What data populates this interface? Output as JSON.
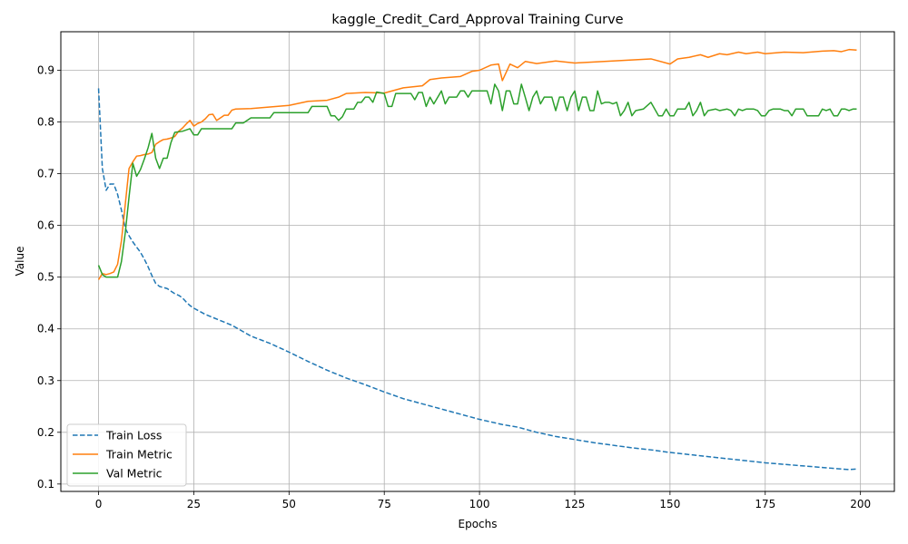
{
  "chart_data": {
    "type": "line",
    "title": "kaggle_Credit_Card_Approval Training Curve",
    "xlabel": "Epochs",
    "ylabel": "Value",
    "xlim": [
      -9.9,
      208.9
    ],
    "ylim": [
      0.0857,
      0.9745
    ],
    "xticks": [
      0,
      25,
      50,
      75,
      100,
      125,
      150,
      175,
      200
    ],
    "yticks": [
      0.1,
      0.2,
      0.3,
      0.4,
      0.5,
      0.6,
      0.7,
      0.8,
      0.9
    ],
    "grid": true,
    "legend_position": "lower-left",
    "series": [
      {
        "name": "Train Loss",
        "color": "#1f77b4",
        "style": "dashed",
        "points": [
          [
            0,
            0.865
          ],
          [
            1,
            0.71
          ],
          [
            2,
            0.668
          ],
          [
            3,
            0.68
          ],
          [
            4,
            0.68
          ],
          [
            5,
            0.66
          ],
          [
            6,
            0.63
          ],
          [
            7,
            0.595
          ],
          [
            8,
            0.58
          ],
          [
            9,
            0.568
          ],
          [
            10,
            0.558
          ],
          [
            11,
            0.548
          ],
          [
            12,
            0.535
          ],
          [
            13,
            0.52
          ],
          [
            14,
            0.503
          ],
          [
            15,
            0.488
          ],
          [
            16,
            0.482
          ],
          [
            17,
            0.48
          ],
          [
            18,
            0.478
          ],
          [
            19,
            0.473
          ],
          [
            20,
            0.468
          ],
          [
            21,
            0.465
          ],
          [
            22,
            0.46
          ],
          [
            23,
            0.452
          ],
          [
            24,
            0.445
          ],
          [
            25,
            0.44
          ],
          [
            26,
            0.436
          ],
          [
            27,
            0.432
          ],
          [
            28,
            0.428
          ],
          [
            29,
            0.425
          ],
          [
            30,
            0.422
          ],
          [
            35,
            0.407
          ],
          [
            40,
            0.386
          ],
          [
            45,
            0.372
          ],
          [
            50,
            0.355
          ],
          [
            55,
            0.337
          ],
          [
            60,
            0.32
          ],
          [
            65,
            0.305
          ],
          [
            70,
            0.292
          ],
          [
            75,
            0.278
          ],
          [
            80,
            0.265
          ],
          [
            85,
            0.255
          ],
          [
            90,
            0.245
          ],
          [
            95,
            0.235
          ],
          [
            100,
            0.225
          ],
          [
            103,
            0.22
          ],
          [
            106,
            0.215
          ],
          [
            110,
            0.21
          ],
          [
            115,
            0.2
          ],
          [
            120,
            0.192
          ],
          [
            125,
            0.186
          ],
          [
            130,
            0.18
          ],
          [
            135,
            0.175
          ],
          [
            140,
            0.17
          ],
          [
            145,
            0.166
          ],
          [
            150,
            0.161
          ],
          [
            155,
            0.157
          ],
          [
            160,
            0.153
          ],
          [
            165,
            0.149
          ],
          [
            170,
            0.145
          ],
          [
            175,
            0.141
          ],
          [
            180,
            0.138
          ],
          [
            185,
            0.135
          ],
          [
            190,
            0.132
          ],
          [
            195,
            0.129
          ],
          [
            197,
            0.128
          ],
          [
            199,
            0.129
          ]
        ]
      },
      {
        "name": "Train Metric",
        "color": "#ff7f0e",
        "style": "solid",
        "points": [
          [
            0,
            0.495
          ],
          [
            1,
            0.507
          ],
          [
            2,
            0.505
          ],
          [
            3,
            0.507
          ],
          [
            4,
            0.51
          ],
          [
            5,
            0.525
          ],
          [
            6,
            0.57
          ],
          [
            7,
            0.64
          ],
          [
            8,
            0.71
          ],
          [
            9,
            0.723
          ],
          [
            10,
            0.734
          ],
          [
            11,
            0.735
          ],
          [
            12,
            0.737
          ],
          [
            13,
            0.738
          ],
          [
            14,
            0.741
          ],
          [
            15,
            0.757
          ],
          [
            16,
            0.762
          ],
          [
            17,
            0.766
          ],
          [
            18,
            0.767
          ],
          [
            19,
            0.769
          ],
          [
            20,
            0.772
          ],
          [
            21,
            0.782
          ],
          [
            22,
            0.788
          ],
          [
            23,
            0.796
          ],
          [
            24,
            0.803
          ],
          [
            25,
            0.792
          ],
          [
            26,
            0.797
          ],
          [
            27,
            0.8
          ],
          [
            28,
            0.806
          ],
          [
            29,
            0.814
          ],
          [
            30,
            0.815
          ],
          [
            31,
            0.803
          ],
          [
            32,
            0.808
          ],
          [
            33,
            0.813
          ],
          [
            34,
            0.813
          ],
          [
            35,
            0.823
          ],
          [
            36,
            0.825
          ],
          [
            40,
            0.826
          ],
          [
            45,
            0.829
          ],
          [
            50,
            0.832
          ],
          [
            55,
            0.84
          ],
          [
            60,
            0.842
          ],
          [
            63,
            0.848
          ],
          [
            65,
            0.855
          ],
          [
            70,
            0.857
          ],
          [
            75,
            0.856
          ],
          [
            80,
            0.866
          ],
          [
            85,
            0.87
          ],
          [
            87,
            0.882
          ],
          [
            90,
            0.885
          ],
          [
            95,
            0.888
          ],
          [
            98,
            0.898
          ],
          [
            100,
            0.9
          ],
          [
            103,
            0.91
          ],
          [
            105,
            0.912
          ],
          [
            106,
            0.88
          ],
          [
            108,
            0.912
          ],
          [
            110,
            0.905
          ],
          [
            112,
            0.917
          ],
          [
            115,
            0.913
          ],
          [
            118,
            0.916
          ],
          [
            120,
            0.918
          ],
          [
            125,
            0.914
          ],
          [
            130,
            0.916
          ],
          [
            135,
            0.918
          ],
          [
            140,
            0.92
          ],
          [
            145,
            0.922
          ],
          [
            150,
            0.912
          ],
          [
            152,
            0.922
          ],
          [
            155,
            0.925
          ],
          [
            158,
            0.93
          ],
          [
            160,
            0.925
          ],
          [
            163,
            0.932
          ],
          [
            165,
            0.93
          ],
          [
            168,
            0.935
          ],
          [
            170,
            0.932
          ],
          [
            173,
            0.935
          ],
          [
            175,
            0.932
          ],
          [
            180,
            0.935
          ],
          [
            185,
            0.934
          ],
          [
            190,
            0.937
          ],
          [
            193,
            0.938
          ],
          [
            195,
            0.936
          ],
          [
            197,
            0.94
          ],
          [
            199,
            0.939
          ]
        ]
      },
      {
        "name": "Val Metric",
        "color": "#2ca02c",
        "style": "solid",
        "points": [
          [
            0,
            0.523
          ],
          [
            1,
            0.505
          ],
          [
            2,
            0.5
          ],
          [
            3,
            0.5
          ],
          [
            4,
            0.5
          ],
          [
            5,
            0.5
          ],
          [
            6,
            0.53
          ],
          [
            7,
            0.585
          ],
          [
            8,
            0.655
          ],
          [
            9,
            0.72
          ],
          [
            10,
            0.695
          ],
          [
            11,
            0.708
          ],
          [
            12,
            0.728
          ],
          [
            13,
            0.75
          ],
          [
            14,
            0.778
          ],
          [
            15,
            0.73
          ],
          [
            16,
            0.71
          ],
          [
            17,
            0.73
          ],
          [
            18,
            0.73
          ],
          [
            19,
            0.76
          ],
          [
            20,
            0.78
          ],
          [
            22,
            0.782
          ],
          [
            24,
            0.787
          ],
          [
            25,
            0.775
          ],
          [
            26,
            0.775
          ],
          [
            27,
            0.787
          ],
          [
            30,
            0.787
          ],
          [
            35,
            0.787
          ],
          [
            36,
            0.798
          ],
          [
            38,
            0.798
          ],
          [
            40,
            0.808
          ],
          [
            45,
            0.808
          ],
          [
            46,
            0.818
          ],
          [
            50,
            0.818
          ],
          [
            55,
            0.818
          ],
          [
            56,
            0.83
          ],
          [
            60,
            0.83
          ],
          [
            61,
            0.812
          ],
          [
            62,
            0.812
          ],
          [
            63,
            0.803
          ],
          [
            64,
            0.81
          ],
          [
            65,
            0.825
          ],
          [
            67,
            0.825
          ],
          [
            68,
            0.838
          ],
          [
            69,
            0.838
          ],
          [
            70,
            0.848
          ],
          [
            71,
            0.848
          ],
          [
            72,
            0.838
          ],
          [
            73,
            0.858
          ],
          [
            75,
            0.855
          ],
          [
            76,
            0.83
          ],
          [
            77,
            0.83
          ],
          [
            78,
            0.855
          ],
          [
            80,
            0.855
          ],
          [
            82,
            0.855
          ],
          [
            83,
            0.843
          ],
          [
            84,
            0.857
          ],
          [
            85,
            0.857
          ],
          [
            86,
            0.83
          ],
          [
            87,
            0.848
          ],
          [
            88,
            0.835
          ],
          [
            90,
            0.86
          ],
          [
            91,
            0.835
          ],
          [
            92,
            0.848
          ],
          [
            94,
            0.848
          ],
          [
            95,
            0.86
          ],
          [
            96,
            0.86
          ],
          [
            97,
            0.848
          ],
          [
            98,
            0.86
          ],
          [
            100,
            0.86
          ],
          [
            102,
            0.86
          ],
          [
            103,
            0.835
          ],
          [
            104,
            0.873
          ],
          [
            105,
            0.86
          ],
          [
            106,
            0.822
          ],
          [
            107,
            0.86
          ],
          [
            108,
            0.86
          ],
          [
            109,
            0.835
          ],
          [
            110,
            0.835
          ],
          [
            111,
            0.873
          ],
          [
            112,
            0.848
          ],
          [
            113,
            0.822
          ],
          [
            114,
            0.848
          ],
          [
            115,
            0.86
          ],
          [
            116,
            0.835
          ],
          [
            117,
            0.848
          ],
          [
            119,
            0.848
          ],
          [
            120,
            0.822
          ],
          [
            121,
            0.848
          ],
          [
            122,
            0.848
          ],
          [
            123,
            0.822
          ],
          [
            124,
            0.848
          ],
          [
            125,
            0.86
          ],
          [
            126,
            0.822
          ],
          [
            127,
            0.848
          ],
          [
            128,
            0.848
          ],
          [
            129,
            0.822
          ],
          [
            130,
            0.822
          ],
          [
            131,
            0.86
          ],
          [
            132,
            0.835
          ],
          [
            133,
            0.838
          ],
          [
            134,
            0.838
          ],
          [
            135,
            0.835
          ],
          [
            136,
            0.838
          ],
          [
            137,
            0.812
          ],
          [
            138,
            0.822
          ],
          [
            139,
            0.838
          ],
          [
            140,
            0.812
          ],
          [
            141,
            0.822
          ],
          [
            143,
            0.825
          ],
          [
            145,
            0.838
          ],
          [
            147,
            0.812
          ],
          [
            148,
            0.812
          ],
          [
            149,
            0.825
          ],
          [
            150,
            0.812
          ],
          [
            151,
            0.812
          ],
          [
            152,
            0.825
          ],
          [
            154,
            0.825
          ],
          [
            155,
            0.838
          ],
          [
            156,
            0.812
          ],
          [
            157,
            0.822
          ],
          [
            158,
            0.838
          ],
          [
            159,
            0.812
          ],
          [
            160,
            0.822
          ],
          [
            162,
            0.825
          ],
          [
            163,
            0.822
          ],
          [
            165,
            0.825
          ],
          [
            166,
            0.822
          ],
          [
            167,
            0.812
          ],
          [
            168,
            0.825
          ],
          [
            169,
            0.822
          ],
          [
            170,
            0.825
          ],
          [
            172,
            0.825
          ],
          [
            173,
            0.822
          ],
          [
            174,
            0.812
          ],
          [
            175,
            0.812
          ],
          [
            176,
            0.822
          ],
          [
            177,
            0.825
          ],
          [
            179,
            0.825
          ],
          [
            180,
            0.822
          ],
          [
            181,
            0.822
          ],
          [
            182,
            0.812
          ],
          [
            183,
            0.825
          ],
          [
            185,
            0.825
          ],
          [
            186,
            0.812
          ],
          [
            189,
            0.812
          ],
          [
            190,
            0.825
          ],
          [
            191,
            0.822
          ],
          [
            192,
            0.825
          ],
          [
            193,
            0.812
          ],
          [
            194,
            0.812
          ],
          [
            195,
            0.825
          ],
          [
            196,
            0.825
          ],
          [
            197,
            0.822
          ],
          [
            198,
            0.825
          ],
          [
            199,
            0.825
          ]
        ]
      }
    ]
  }
}
